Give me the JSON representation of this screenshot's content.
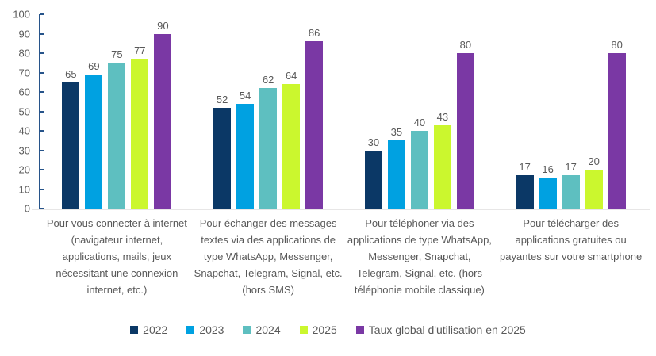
{
  "chart_data": {
    "type": "bar",
    "title": "",
    "categories": [
      "Pour vous connecter à internet (navigateur internet, applications, mails, jeux nécessitant une connexion internet, etc.)",
      "Pour échanger des messages textes via des applications de type WhatsApp, Messenger, Snapchat, Telegram, Signal, etc. (hors SMS)",
      "Pour téléphoner via des applications de type WhatsApp, Messenger, Snapchat, Telegram, Signal, etc. (hors téléphonie mobile classique)",
      "Pour télécharger des applications gratuites ou payantes sur votre smartphone"
    ],
    "series": [
      {
        "name": "2022",
        "color": "#0B3866",
        "values": [
          65,
          52,
          30,
          17
        ]
      },
      {
        "name": "2023",
        "color": "#00A1E1",
        "values": [
          69,
          54,
          35,
          16
        ]
      },
      {
        "name": "2024",
        "color": "#5EBFC0",
        "values": [
          75,
          62,
          40,
          17
        ]
      },
      {
        "name": "2025",
        "color": "#CBF72E",
        "values": [
          77,
          64,
          43,
          20
        ]
      },
      {
        "name": "Taux global d'utilisation en 2025",
        "color": "#7A38A4",
        "values": [
          90,
          86,
          80,
          80
        ]
      }
    ],
    "ylim": [
      0,
      100
    ],
    "ytick_step": 10,
    "ytick_labels": [
      "0",
      "10",
      "20",
      "30",
      "40",
      "50",
      "60",
      "70",
      "80",
      "90",
      "100"
    ],
    "grid": false,
    "data_labels_shown": true,
    "legend_position": "bottom"
  },
  "styles": {
    "background": "#FFFFFF",
    "axis_color": "#27548A",
    "baseline_color": "#E7E6E6",
    "text_color": "#595959"
  }
}
